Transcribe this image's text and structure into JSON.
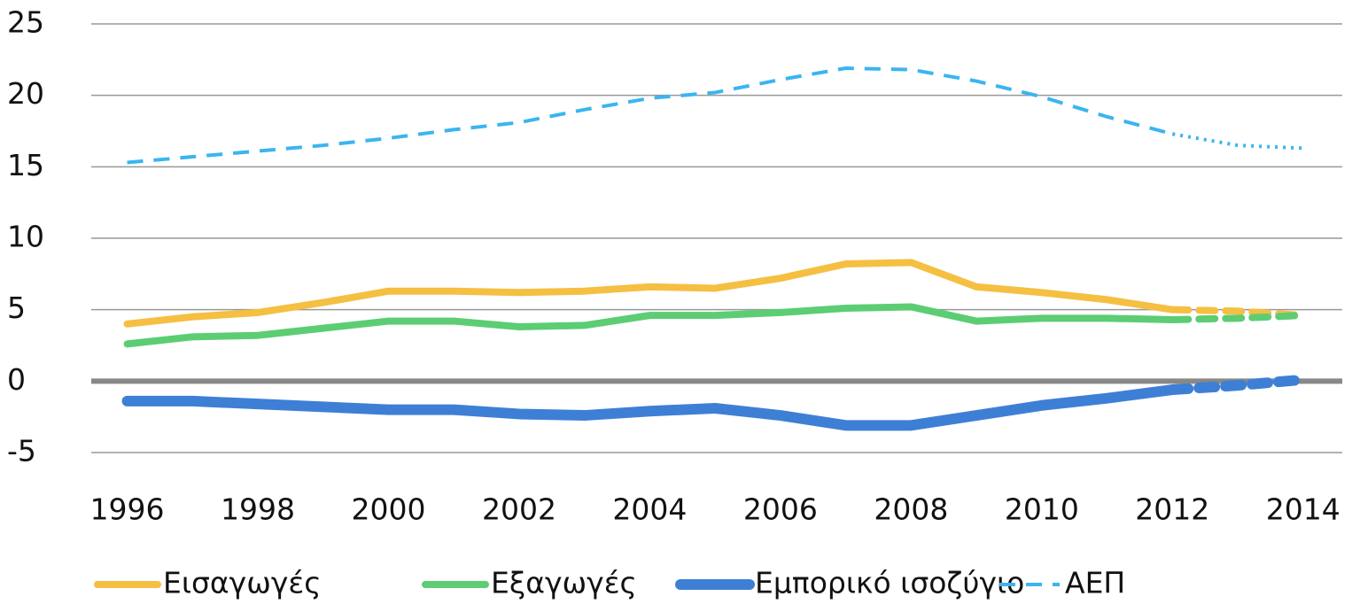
{
  "chart_data": {
    "type": "line",
    "x": [
      1996,
      1997,
      1998,
      1999,
      2000,
      2001,
      2002,
      2003,
      2004,
      2005,
      2006,
      2007,
      2008,
      2009,
      2010,
      2011,
      2012,
      2013,
      2014
    ],
    "xlim": [
      1995.45,
      2014.6
    ],
    "xticks": [
      1996,
      1998,
      2000,
      2002,
      2004,
      2006,
      2008,
      2010,
      2012,
      2014
    ],
    "ylim": [
      -5,
      25
    ],
    "yticks": [
      -5,
      0,
      5,
      10,
      15,
      20,
      25
    ],
    "grid": true,
    "legend": "bottom",
    "forecast_from": 2012,
    "series": [
      {
        "name": "Εισαγωγές",
        "color": "#f5bf42",
        "width": 8,
        "dash": "solid",
        "forecast_dash": "dashed",
        "values": [
          4.0,
          4.5,
          4.8,
          5.5,
          6.3,
          6.3,
          6.2,
          6.3,
          6.6,
          6.5,
          7.2,
          8.2,
          8.3,
          6.6,
          6.2,
          5.7,
          5.0,
          4.9,
          4.6
        ]
      },
      {
        "name": "Εξαγωγές",
        "color": "#5ccd73",
        "width": 8,
        "dash": "solid",
        "forecast_dash": "dashed",
        "values": [
          2.6,
          3.1,
          3.2,
          3.7,
          4.2,
          4.2,
          3.8,
          3.9,
          4.6,
          4.6,
          4.8,
          5.1,
          5.2,
          4.2,
          4.4,
          4.4,
          4.3,
          4.4,
          4.6
        ]
      },
      {
        "name": "Εμπορικό ισοζύγιο",
        "color": "#3e7fd6",
        "width": 12,
        "dash": "solid",
        "forecast_dash": "dashed",
        "values": [
          -1.4,
          -1.4,
          -1.6,
          -1.8,
          -2.0,
          -2.0,
          -2.3,
          -2.4,
          -2.1,
          -1.9,
          -2.4,
          -3.1,
          -3.1,
          -2.4,
          -1.7,
          -1.2,
          -0.6,
          -0.3,
          0.1
        ]
      },
      {
        "name": "ΑΕΠ",
        "color": "#3ab5f0",
        "width": 4,
        "dash": "dashed",
        "forecast_dash": "dotted",
        "values": [
          15.3,
          15.7,
          16.1,
          16.5,
          17.0,
          17.6,
          18.1,
          19.0,
          19.8,
          20.2,
          21.1,
          21.9,
          21.8,
          21.0,
          19.9,
          18.5,
          17.3,
          16.5,
          16.3
        ]
      }
    ]
  }
}
